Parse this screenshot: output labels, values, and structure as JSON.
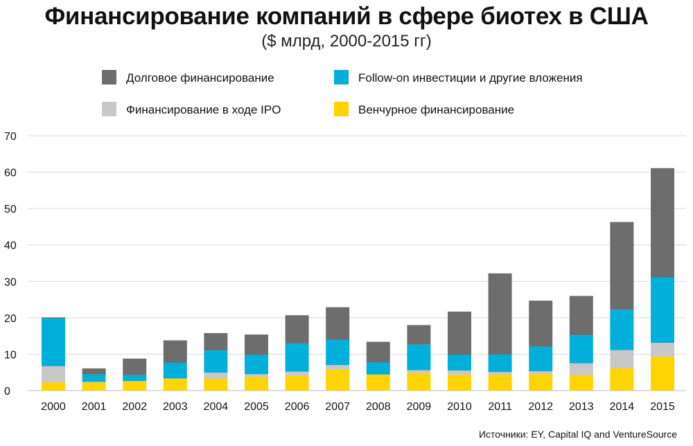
{
  "chart_data": {
    "type": "bar",
    "stacked": true,
    "title": "Финансирование компаний в сфере биотех в США",
    "subtitle": "($ млрд, 2000-2015 гг)",
    "source": "Источники: EY, Capital IQ and VentureSource",
    "categories": [
      "2000",
      "2001",
      "2002",
      "2003",
      "2004",
      "2005",
      "2006",
      "2007",
      "2008",
      "2009",
      "2010",
      "2011",
      "2012",
      "2013",
      "2014",
      "2015"
    ],
    "ylim": [
      0,
      70
    ],
    "yticks": [
      0,
      10,
      20,
      30,
      40,
      50,
      60,
      70
    ],
    "grid": true,
    "legend_position": "top",
    "series": [
      {
        "name": "Венчурное финансирование",
        "color": "#FFD400",
        "values": [
          2.2,
          2.2,
          2.5,
          3.2,
          3.2,
          3.7,
          4.0,
          5.7,
          4.3,
          4.8,
          4.3,
          4.3,
          4.5,
          4.2,
          6.1,
          9.3
        ]
      },
      {
        "name": "Финансирование в ходе IPO",
        "color": "#C8C8C8",
        "values": [
          4.5,
          0.2,
          0.1,
          0.1,
          1.7,
          0.8,
          1.2,
          1.3,
          0.1,
          0.8,
          1.2,
          0.8,
          0.8,
          3.3,
          5.0,
          3.8
        ]
      },
      {
        "name": "Follow-on инвестиции и другие вложения",
        "color": "#00B0DB",
        "values": [
          13.1,
          2.0,
          1.6,
          4.3,
          6.1,
          5.3,
          7.7,
          6.9,
          3.3,
          7.0,
          4.3,
          4.8,
          6.7,
          7.7,
          11.1,
          18.0
        ]
      },
      {
        "name": "Долговое финансирование",
        "color": "#6D6D6D",
        "values": [
          0.3,
          1.7,
          4.6,
          6.2,
          4.8,
          5.6,
          7.8,
          9.0,
          5.7,
          5.4,
          11.9,
          22.3,
          12.7,
          10.8,
          24.1,
          30.0
        ]
      }
    ],
    "legend_order": [
      3,
      2,
      1,
      0
    ]
  }
}
